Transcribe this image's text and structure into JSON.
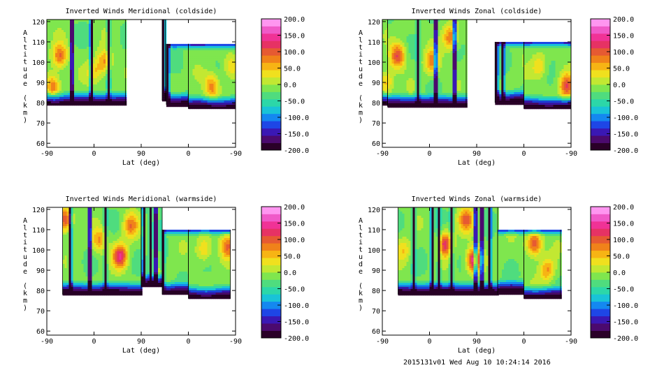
{
  "footer": "2015131v01 Wed Aug 10 10:24:14 2016",
  "colorbar": {
    "labels": [
      "200.0",
      "150.0",
      "100.0",
      "50.0",
      "0.0",
      "-50.0",
      "-100.0",
      "-150.0",
      "-200.0"
    ],
    "stops": [
      "#2a0028",
      "#4b0a6e",
      "#3a18b4",
      "#1e46e6",
      "#1488f0",
      "#19c3d7",
      "#2cd7a8",
      "#4fdc7e",
      "#7fe64e",
      "#c2e832",
      "#f0e01e",
      "#f7b414",
      "#f0821a",
      "#e65a32",
      "#e63264",
      "#f03296",
      "#f05ac8",
      "#ff96f0"
    ]
  },
  "chart_data": [
    {
      "type": "heatmap",
      "title": "Inverted Winds Meridional (coldside)",
      "xlabel": "Lat (deg)",
      "ylabel": "Altitude (km)",
      "xticks": [
        "-90",
        "0",
        "90",
        "0",
        "-90"
      ],
      "yticks": [
        "60",
        "70",
        "80",
        "90",
        "100",
        "110",
        "120"
      ],
      "ylim": [
        58,
        121
      ],
      "zlim": [
        -200,
        200
      ],
      "segments": [
        {
          "x0": -90,
          "x1": 60,
          "bottom": 79,
          "top": 121
        },
        {
          "x0": 130,
          "x1": 136,
          "bottom": 81,
          "top": 121
        },
        {
          "x0": 138,
          "x1": 180,
          "bottom": 79,
          "top": 109
        },
        {
          "x0": 180,
          "x1": 270,
          "bottom": 77,
          "top": 109
        }
      ],
      "vertical_bands": [
        -42,
        -5,
        28,
        133,
        141
      ],
      "blobs": [
        {
          "x": -65,
          "y": 103,
          "v": 95
        },
        {
          "x": -78,
          "y": 88,
          "v": 85
        },
        {
          "x": 0,
          "y": 95,
          "v": 40
        },
        {
          "x": 20,
          "y": 100,
          "v": 75
        },
        {
          "x": 225,
          "y": 88,
          "v": 80
        },
        {
          "x": 260,
          "y": 98,
          "v": 40
        }
      ]
    },
    {
      "type": "heatmap",
      "title": "Inverted Winds Zonal (coldside)",
      "xlabel": "Lat (deg)",
      "ylabel": "Altitude (km)",
      "xticks": [
        "-90",
        "0",
        "90",
        "0",
        "-90"
      ],
      "yticks": [
        "60",
        "70",
        "80",
        "90",
        "100",
        "110",
        "120"
      ],
      "ylim": [
        58,
        121
      ],
      "zlim": [
        -200,
        200
      ],
      "segments": [
        {
          "x0": -90,
          "x1": -80,
          "bottom": 79,
          "top": 121
        },
        {
          "x0": -80,
          "x1": 70,
          "bottom": 78,
          "top": 121
        },
        {
          "x0": 125,
          "x1": 180,
          "bottom": 80,
          "top": 110
        },
        {
          "x0": 180,
          "x1": 270,
          "bottom": 77,
          "top": 110
        }
      ],
      "vertical_bands": [
        -22,
        12,
        48,
        128,
        140
      ],
      "blobs": [
        {
          "x": -60,
          "y": 103,
          "v": 110
        },
        {
          "x": -82,
          "y": 90,
          "v": 60
        },
        {
          "x": 5,
          "y": 100,
          "v": 80
        },
        {
          "x": 40,
          "y": 112,
          "v": 90
        },
        {
          "x": 262,
          "y": 88,
          "v": 110
        },
        {
          "x": 210,
          "y": 98,
          "v": 45
        }
      ]
    },
    {
      "type": "heatmap",
      "title": "Inverted Winds Meridional (warmside)",
      "xlabel": "Lat (deg)",
      "ylabel": "Altitude (km)",
      "xticks": [
        "-90",
        "0",
        "90",
        "0",
        "-90"
      ],
      "yticks": [
        "60",
        "70",
        "80",
        "90",
        "100",
        "110",
        "120"
      ],
      "ylim": [
        58,
        121
      ],
      "zlim": [
        -200,
        200
      ],
      "segments": [
        {
          "x0": -60,
          "x1": 90,
          "bottom": 78,
          "top": 121
        },
        {
          "x0": 90,
          "x1": 130,
          "bottom": 82,
          "top": 121
        },
        {
          "x0": 130,
          "x1": 180,
          "bottom": 78,
          "top": 110
        },
        {
          "x0": 180,
          "x1": 260,
          "bottom": 76,
          "top": 110
        }
      ],
      "vertical_bands": [
        -45,
        -8,
        22,
        95,
        108,
        118,
        132
      ],
      "blobs": [
        {
          "x": -55,
          "y": 115,
          "v": 120
        },
        {
          "x": 10,
          "y": 105,
          "v": 70
        },
        {
          "x": 50,
          "y": 97,
          "v": 130
        },
        {
          "x": 70,
          "y": 112,
          "v": 80
        },
        {
          "x": 210,
          "y": 100,
          "v": 50
        },
        {
          "x": 255,
          "y": 102,
          "v": 90
        }
      ]
    },
    {
      "type": "heatmap",
      "title": "Inverted Winds Zonal (warmside)",
      "xlabel": "Lat (deg)",
      "ylabel": "Altitude (km)",
      "xticks": [
        "-90",
        "0",
        "90",
        "0",
        "-90"
      ],
      "yticks": [
        "60",
        "70",
        "80",
        "90",
        "100",
        "110",
        "120"
      ],
      "ylim": [
        58,
        121
      ],
      "zlim": [
        -200,
        200
      ],
      "segments": [
        {
          "x0": -60,
          "x1": 130,
          "bottom": 78,
          "top": 121
        },
        {
          "x0": 130,
          "x1": 180,
          "bottom": 79,
          "top": 110
        },
        {
          "x0": 180,
          "x1": 250,
          "bottom": 76,
          "top": 110
        }
      ],
      "vertical_bands": [
        -30,
        5,
        18,
        42,
        88,
        100,
        115
      ],
      "blobs": [
        {
          "x": 30,
          "y": 103,
          "v": 120
        },
        {
          "x": 85,
          "y": 95,
          "v": 160
        },
        {
          "x": 70,
          "y": 115,
          "v": 90
        },
        {
          "x": 200,
          "y": 103,
          "v": 120
        },
        {
          "x": 225,
          "y": 90,
          "v": 70
        },
        {
          "x": -50,
          "y": 100,
          "v": 40
        }
      ]
    }
  ]
}
